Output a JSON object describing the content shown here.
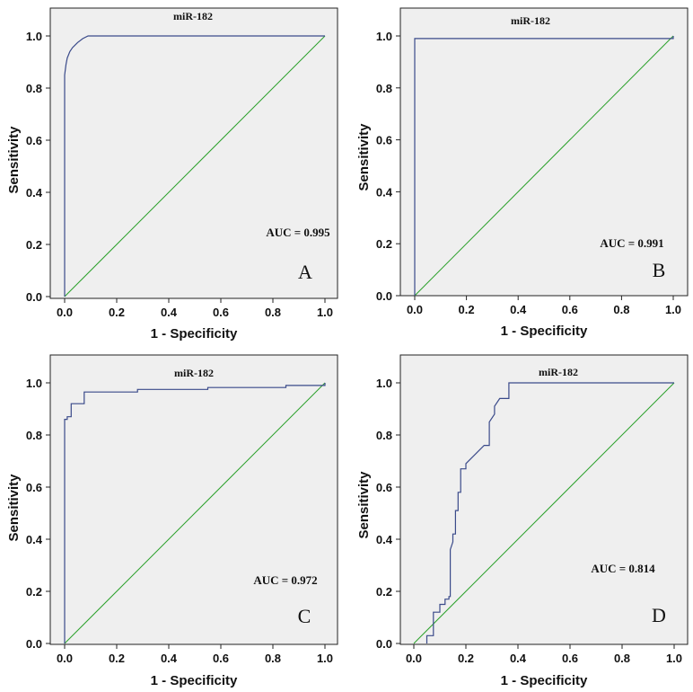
{
  "colors": {
    "plot_background": "#efefef",
    "roc_curve": "#3a4a8a",
    "reference_line": "#2aa02a",
    "axis": "#222222"
  },
  "chart_data": [
    {
      "type": "line",
      "panel": "A",
      "title": "miR-182",
      "xlabel": "1 - Specificity",
      "ylabel": "Sensitivity",
      "xlim": [
        0,
        1
      ],
      "ylim": [
        0,
        1.1
      ],
      "xticks": [
        "0.0",
        "0.2",
        "0.4",
        "0.6",
        "0.8",
        "1.0"
      ],
      "yticks": [
        "0.0",
        "0.2",
        "0.4",
        "0.6",
        "0.8",
        "1.0"
      ],
      "annotation": "AUC = 0.995",
      "series": [
        {
          "name": "ROC curve",
          "x": [
            0,
            0,
            0.005,
            0.01,
            0.02,
            0.03,
            0.05,
            0.07,
            0.09,
            1.0
          ],
          "y": [
            0,
            0.85,
            0.89,
            0.915,
            0.94,
            0.955,
            0.975,
            0.99,
            1.0,
            1.0
          ]
        },
        {
          "name": "Reference line",
          "x": [
            0,
            1
          ],
          "y": [
            0,
            1
          ]
        }
      ]
    },
    {
      "type": "line",
      "panel": "B",
      "title": "miR-182",
      "xlabel": "1 - Specificity",
      "ylabel": "Sensitivity",
      "xlim": [
        0,
        1
      ],
      "ylim": [
        0,
        1.1
      ],
      "xticks": [
        "0.0",
        "0.2",
        "0.4",
        "0.6",
        "0.8",
        "1.0"
      ],
      "yticks": [
        "0.0",
        "0.2",
        "0.4",
        "0.6",
        "0.8",
        "1.0"
      ],
      "annotation": "AUC = 0.991",
      "series": [
        {
          "name": "ROC curve",
          "x": [
            0,
            0,
            1.0,
            1.0
          ],
          "y": [
            0,
            0.99,
            0.99,
            1.0
          ]
        },
        {
          "name": "Reference line",
          "x": [
            0,
            1
          ],
          "y": [
            0,
            1
          ]
        }
      ]
    },
    {
      "type": "line",
      "panel": "C",
      "title": "miR-182",
      "xlabel": "1 - Specificity",
      "ylabel": "Sensitivity",
      "xlim": [
        0,
        1
      ],
      "ylim": [
        0,
        1.1
      ],
      "xticks": [
        "0.0",
        "0.2",
        "0.4",
        "0.6",
        "0.8",
        "1.0"
      ],
      "yticks": [
        "0.0",
        "0.2",
        "0.4",
        "0.6",
        "0.8",
        "1.0"
      ],
      "annotation": "AUC = 0.972",
      "series": [
        {
          "name": "ROC curve",
          "x": [
            0,
            0,
            0.01,
            0.01,
            0.025,
            0.025,
            0.045,
            0.07,
            0.075,
            0.075,
            0.28,
            0.28,
            0.55,
            0.55,
            0.85,
            0.85,
            1.0,
            1.0
          ],
          "y": [
            0,
            0.86,
            0.86,
            0.87,
            0.87,
            0.92,
            0.92,
            0.92,
            0.92,
            0.965,
            0.965,
            0.975,
            0.975,
            0.982,
            0.982,
            0.99,
            0.99,
            1.0
          ]
        },
        {
          "name": "Reference line",
          "x": [
            0,
            1
          ],
          "y": [
            0,
            1
          ]
        }
      ]
    },
    {
      "type": "line",
      "panel": "D",
      "title": "miR-182",
      "xlabel": "1 - Specificity",
      "ylabel": "Sensitivity",
      "xlim": [
        -0.03,
        1.0
      ],
      "ylim": [
        0,
        1.1
      ],
      "xticks": [
        "0.0",
        "0.2",
        "0.4",
        "0.6",
        "0.8",
        "1.0"
      ],
      "yticks": [
        "0.0",
        "0.2",
        "0.4",
        "0.6",
        "0.8",
        "1.0"
      ],
      "annotation": "AUC = 0.814",
      "series": [
        {
          "name": "ROC curve",
          "x": [
            0.05,
            0.05,
            0.075,
            0.075,
            0.1,
            0.1,
            0.12,
            0.12,
            0.135,
            0.135,
            0.14,
            0.14,
            0.15,
            0.15,
            0.16,
            0.16,
            0.17,
            0.17,
            0.18,
            0.18,
            0.2,
            0.2,
            0.24,
            0.27,
            0.29,
            0.29,
            0.31,
            0.31,
            0.33,
            0.365,
            0.365,
            1.0
          ],
          "y": [
            0,
            0.03,
            0.03,
            0.12,
            0.12,
            0.15,
            0.15,
            0.17,
            0.17,
            0.18,
            0.18,
            0.36,
            0.39,
            0.42,
            0.42,
            0.51,
            0.51,
            0.58,
            0.58,
            0.67,
            0.67,
            0.69,
            0.73,
            0.76,
            0.76,
            0.85,
            0.88,
            0.91,
            0.94,
            0.94,
            1.0,
            1.0
          ]
        },
        {
          "name": "Reference line",
          "x": [
            0,
            1
          ],
          "y": [
            0,
            1
          ]
        }
      ]
    }
  ]
}
